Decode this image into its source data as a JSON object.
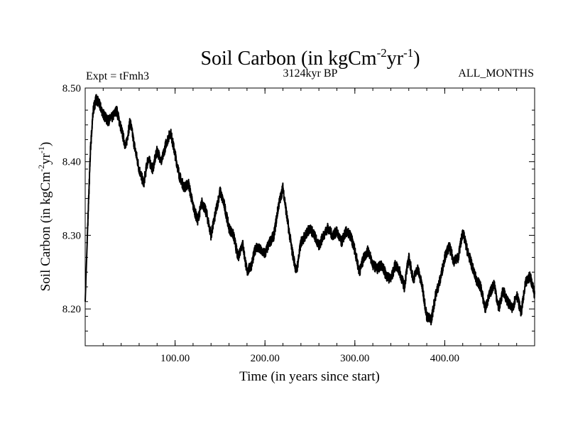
{
  "chart_data": {
    "type": "line",
    "title_main": "Soil Carbon (in kgCm",
    "title_sup1": "-2",
    "title_mid": "yr",
    "title_sup2": "-1",
    "title_end": ")",
    "left_label": "Expt = tFmh3",
    "center_label": "3124kyr BP",
    "right_label": "ALL_MONTHS",
    "xlabel": "Time (in years since start)",
    "ylabel_main": "Soil Carbon (in kgCm",
    "ylabel_sup1": "-2",
    "ylabel_mid": "yr",
    "ylabel_sup2": "-1",
    "ylabel_end": ")",
    "xlim": [
      0,
      500
    ],
    "ylim": [
      8.15,
      8.5
    ],
    "x_ticks": [
      100,
      200,
      300,
      400
    ],
    "x_tick_labels": [
      "100.00",
      "200.00",
      "300.00",
      "400.00"
    ],
    "y_ticks": [
      8.2,
      8.3,
      8.4,
      8.5
    ],
    "y_tick_labels": [
      "8.20",
      "8.30",
      "8.40",
      "8.50"
    ],
    "x_minor_step": 20,
    "y_minor_step": 0.02,
    "series": [
      {
        "name": "Soil Carbon",
        "color": "#000000",
        "x": [
          0,
          3,
          6,
          9,
          12,
          15,
          20,
          25,
          30,
          35,
          40,
          45,
          50,
          55,
          60,
          65,
          70,
          75,
          80,
          85,
          90,
          95,
          100,
          105,
          110,
          115,
          120,
          125,
          130,
          135,
          140,
          145,
          150,
          155,
          160,
          165,
          170,
          175,
          180,
          185,
          190,
          195,
          200,
          205,
          210,
          215,
          220,
          225,
          230,
          235,
          240,
          245,
          250,
          255,
          260,
          265,
          270,
          275,
          280,
          285,
          290,
          295,
          300,
          305,
          310,
          315,
          320,
          325,
          330,
          335,
          340,
          345,
          350,
          355,
          360,
          365,
          370,
          375,
          380,
          385,
          390,
          395,
          400,
          405,
          410,
          415,
          420,
          425,
          430,
          435,
          440,
          445,
          450,
          455,
          460,
          465,
          470,
          475,
          480,
          485,
          490,
          495,
          500
        ],
        "y": [
          8.21,
          8.32,
          8.42,
          8.47,
          8.485,
          8.48,
          8.465,
          8.455,
          8.46,
          8.47,
          8.445,
          8.42,
          8.455,
          8.42,
          8.39,
          8.37,
          8.405,
          8.39,
          8.415,
          8.4,
          8.425,
          8.44,
          8.41,
          8.38,
          8.365,
          8.37,
          8.34,
          8.32,
          8.345,
          8.33,
          8.3,
          8.33,
          8.36,
          8.34,
          8.31,
          8.3,
          8.27,
          8.29,
          8.25,
          8.26,
          8.285,
          8.28,
          8.275,
          8.29,
          8.3,
          8.34,
          8.365,
          8.32,
          8.28,
          8.25,
          8.29,
          8.3,
          8.31,
          8.3,
          8.285,
          8.3,
          8.31,
          8.3,
          8.305,
          8.29,
          8.305,
          8.3,
          8.28,
          8.25,
          8.27,
          8.28,
          8.26,
          8.255,
          8.26,
          8.245,
          8.24,
          8.26,
          8.25,
          8.23,
          8.27,
          8.24,
          8.255,
          8.23,
          8.19,
          8.185,
          8.22,
          8.24,
          8.27,
          8.285,
          8.265,
          8.27,
          8.305,
          8.28,
          8.26,
          8.24,
          8.23,
          8.2,
          8.22,
          8.235,
          8.2,
          8.225,
          8.21,
          8.2,
          8.22,
          8.195,
          8.235,
          8.245,
          8.22
        ]
      }
    ]
  }
}
